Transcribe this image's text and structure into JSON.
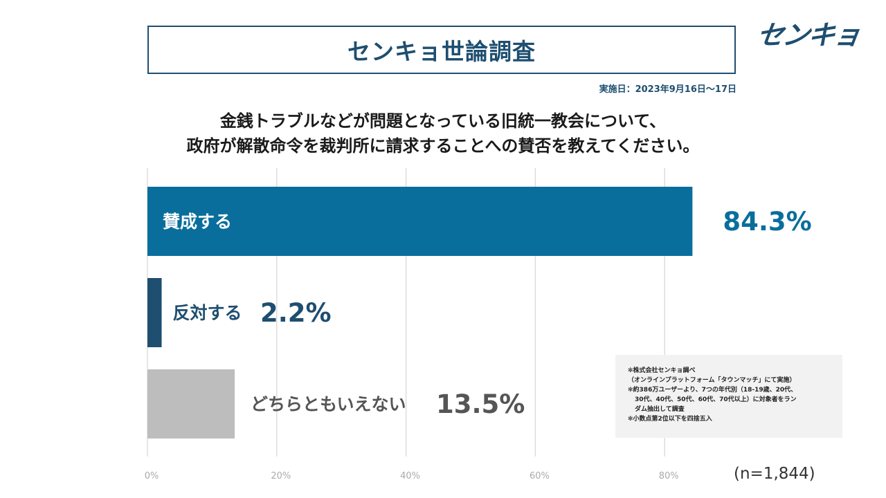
{
  "header": {
    "title": "センキョ世論調査",
    "logo_text": "センキョ",
    "date": "実施日：2023年9月16日～17日"
  },
  "question": {
    "line1": "金銭トラブルなどが問題となっている旧統一教会について、",
    "line2": "政府が解散命令を裁判所に請求することへの賛否を教えてください。"
  },
  "chart_data": {
    "type": "bar",
    "orientation": "horizontal",
    "categories": [
      "賛成する",
      "反対する",
      "どちらともいえない"
    ],
    "values": [
      84.3,
      2.2,
      13.5
    ],
    "value_labels": [
      "84.3%",
      "2.2%",
      "13.5%"
    ],
    "colors": [
      "#0a6e9c",
      "#1e4e70",
      "#bdbdbd"
    ],
    "xlim": [
      0,
      100
    ],
    "x_ticks": [
      0,
      20,
      40,
      60,
      80
    ],
    "x_tick_labels": [
      "0%",
      "20%",
      "40%",
      "60%",
      "80%"
    ],
    "grid": true
  },
  "notes": {
    "line1": "✻株式会社センキョ調べ",
    "line2": "（オンラインプラットフォーム「タウンマッチ」にて実施）",
    "line3": "✻約386万ユーザーより、7つの年代別（18-19歳、20代、",
    "line4": "30代、40代、50代、60代、70代以上）に対象者をラン",
    "line5": "ダム抽出して調査",
    "line6": "✻小数点第2位以下を四捨五入"
  },
  "sample_size": "(n=1,844)"
}
